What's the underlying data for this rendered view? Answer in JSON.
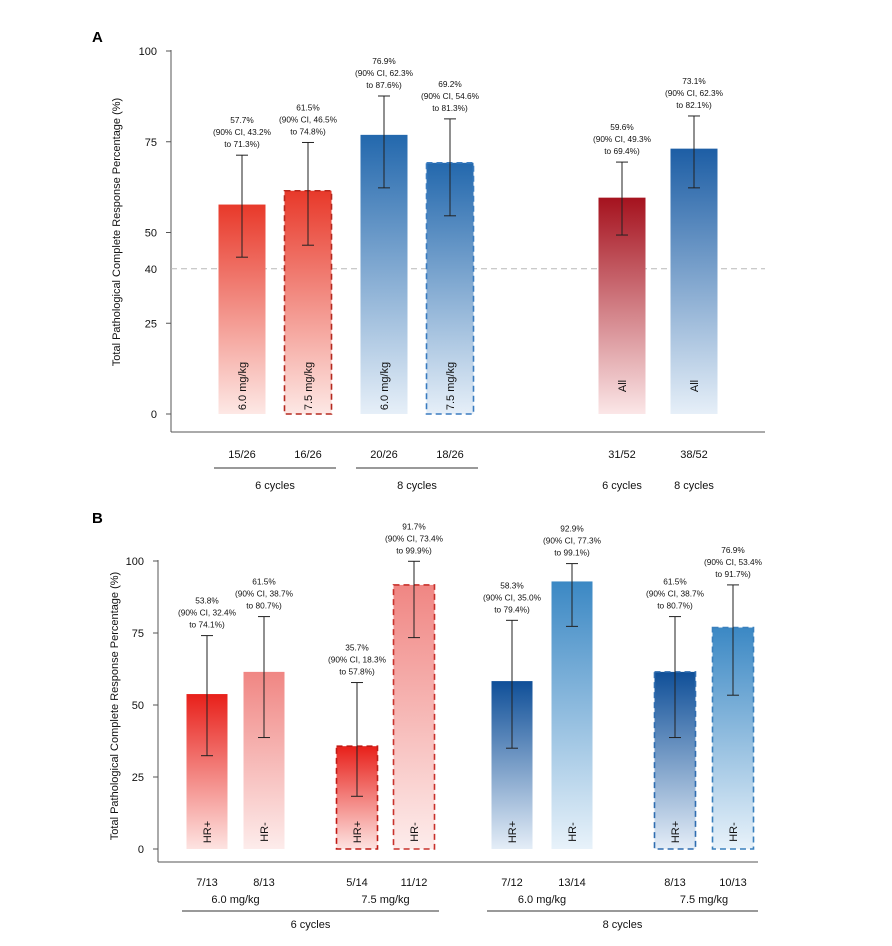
{
  "chart_data": [
    {
      "panel": "A",
      "type": "bar",
      "ylabel": "Total Pathological Complete Response Percentage (%)",
      "ylim": [
        0,
        100
      ],
      "yticks": [
        "0",
        "25",
        "50",
        "75",
        "100"
      ],
      "reference_line": {
        "value": 40,
        "label": "40"
      },
      "bars": [
        {
          "label": "6.0 mg/kg",
          "count": "15/26",
          "value": 57.7,
          "ci": [
            43.2,
            71.3
          ],
          "style": "solid",
          "gradient": [
            "#e8392a",
            "#fde8e5"
          ],
          "outline": "none",
          "ann": [
            "57.7%",
            "(90% CI, 43.2%",
            "to 71.3%)"
          ]
        },
        {
          "label": "7.5 mg/kg",
          "count": "16/26",
          "value": 61.5,
          "ci": [
            46.5,
            74.8
          ],
          "style": "dashed",
          "gradient": [
            "#e8392a",
            "#fde8e5"
          ],
          "outline": "#b5281e",
          "ann": [
            "61.5%",
            "(90% CI, 46.5%",
            "to 74.8%)"
          ]
        },
        {
          "label": "6.0 mg/kg",
          "count": "20/26",
          "value": 76.9,
          "ci": [
            62.3,
            87.6
          ],
          "style": "solid",
          "gradient": [
            "#2368ad",
            "#e6eff8"
          ],
          "outline": "none",
          "ann": [
            "76.9%",
            "(90% CI, 62.3%",
            "to 87.6%)"
          ]
        },
        {
          "label": "7.5 mg/kg",
          "count": "18/26",
          "value": 69.2,
          "ci": [
            54.6,
            81.3
          ],
          "style": "dashed",
          "gradient": [
            "#2368ad",
            "#e6eff8"
          ],
          "outline": "#3a7cc0",
          "ann": [
            "69.2%",
            "(90% CI, 54.6%",
            "to 81.3%)"
          ]
        },
        {
          "label": "All",
          "count": "31/52",
          "value": 59.6,
          "ci": [
            49.3,
            69.4
          ],
          "style": "solid",
          "gradient": [
            "#a5121e",
            "#fbe6e7"
          ],
          "outline": "none",
          "ann": [
            "59.6%",
            "(90% CI, 49.3%",
            "to 69.4%)"
          ]
        },
        {
          "label": "All",
          "count": "38/52",
          "value": 73.1,
          "ci": [
            62.3,
            82.1
          ],
          "style": "solid",
          "gradient": [
            "#1d5ea5",
            "#e6eff8"
          ],
          "outline": "none",
          "ann": [
            "73.1%",
            "(90% CI, 62.3%",
            "to 82.1%)"
          ]
        }
      ],
      "groups": [
        {
          "label": "6 cycles",
          "bars": [
            0,
            1
          ],
          "line": true
        },
        {
          "label": "8 cycles",
          "bars": [
            2,
            3
          ],
          "line": true
        },
        {
          "label": "6 cycles",
          "bars": [
            4
          ],
          "line": false
        },
        {
          "label": "8 cycles",
          "bars": [
            5
          ],
          "line": false
        }
      ]
    },
    {
      "panel": "B",
      "type": "bar",
      "ylabel": "Total Pathological Complete Response Percentage (%)",
      "ylim": [
        0,
        100
      ],
      "yticks": [
        "0",
        "25",
        "50",
        "75",
        "100"
      ],
      "bars": [
        {
          "label": "HR+",
          "count": "7/13",
          "value": 53.8,
          "ci": [
            32.4,
            74.1
          ],
          "style": "solid",
          "gradient": [
            "#e8201a",
            "#fde3e1"
          ],
          "outline": "none",
          "ann": [
            "53.8%",
            "(90% CI, 32.4%",
            "to 74.1%)"
          ]
        },
        {
          "label": "HR-",
          "count": "8/13",
          "value": 61.5,
          "ci": [
            38.7,
            80.7
          ],
          "style": "solid",
          "gradient": [
            "#f08683",
            "#fdeceb"
          ],
          "outline": "none",
          "ann": [
            "61.5%",
            "(90% CI, 38.7%",
            "to 80.7%)"
          ]
        },
        {
          "label": "HR+",
          "count": "5/14",
          "value": 35.7,
          "ci": [
            18.3,
            57.8
          ],
          "style": "dashed",
          "gradient": [
            "#e8201a",
            "#fde3e1"
          ],
          "outline": "#c01a14",
          "ann": [
            "35.7%",
            "(90% CI, 18.3%",
            "to 57.8%)"
          ]
        },
        {
          "label": "HR-",
          "count": "11/12",
          "value": 91.7,
          "ci": [
            73.4,
            99.9
          ],
          "style": "dashed",
          "gradient": [
            "#f08683",
            "#fdeceb"
          ],
          "outline": "#c8302a",
          "ann": [
            "91.7%",
            "(90% CI, 73.4%",
            "to 99.9%)"
          ]
        },
        {
          "label": "HR+",
          "count": "7/12",
          "value": 58.3,
          "ci": [
            35.0,
            79.4
          ],
          "style": "solid",
          "gradient": [
            "#0f4f98",
            "#e4edf7"
          ],
          "outline": "none",
          "ann": [
            "58.3%",
            "(90% CI, 35.0%",
            "to 79.4%)"
          ]
        },
        {
          "label": "HR-",
          "count": "13/14",
          "value": 92.9,
          "ci": [
            77.3,
            99.1
          ],
          "style": "solid",
          "gradient": [
            "#3b88c4",
            "#e8f2fa"
          ],
          "outline": "none",
          "ann": [
            "92.9%",
            "(90% CI, 77.3%",
            "to 99.1%)"
          ]
        },
        {
          "label": "HR+",
          "count": "8/13",
          "value": 61.5,
          "ci": [
            38.7,
            80.7
          ],
          "style": "dashed",
          "gradient": [
            "#0f4f98",
            "#e4edf7"
          ],
          "outline": "#2f6db0",
          "ann": [
            "61.5%",
            "(90% CI, 38.7%",
            "to 80.7%)"
          ]
        },
        {
          "label": "HR-",
          "count": "10/13",
          "value": 76.9,
          "ci": [
            53.4,
            91.7
          ],
          "style": "dashed",
          "gradient": [
            "#3b88c4",
            "#e8f2fa"
          ],
          "outline": "#3a80bd",
          "ann": [
            "76.9%",
            "(90% CI, 53.4%",
            "to 91.7%)"
          ]
        }
      ],
      "subgroups": [
        {
          "label": "6.0 mg/kg",
          "bars": [
            0,
            1
          ]
        },
        {
          "label": "7.5 mg/kg",
          "bars": [
            2,
            3
          ]
        },
        {
          "label": "6.0 mg/kg",
          "bars": [
            4,
            5
          ]
        },
        {
          "label": "7.5 mg/kg",
          "bars": [
            6,
            7
          ]
        }
      ],
      "groups": [
        {
          "label": "6 cycles",
          "bars": [
            0,
            3
          ]
        },
        {
          "label": "8 cycles",
          "bars": [
            4,
            7
          ]
        }
      ]
    }
  ]
}
